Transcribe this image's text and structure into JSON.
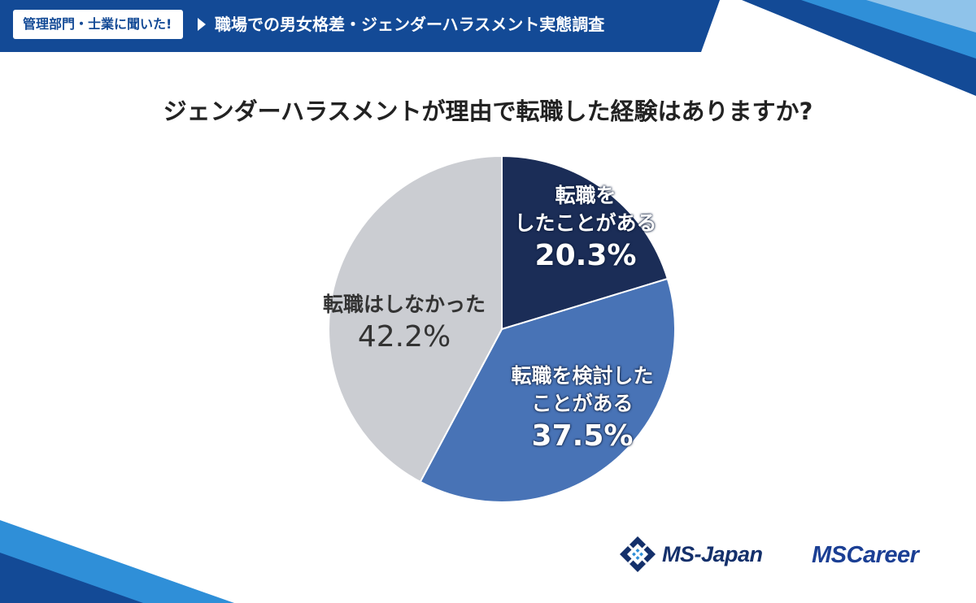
{
  "header": {
    "badge": "管理部門・士業に聞いた!",
    "survey_title": "職場での男女格差・ジェンダーハラスメント実態調査"
  },
  "question": "ジェンダーハラスメントが理由で転職した経験はありますか?",
  "chart_data": {
    "type": "pie",
    "title": "ジェンダーハラスメントが理由で転職した経験はありますか?",
    "start_angle": "12 o'clock, clockwise",
    "slices": [
      {
        "label_line1": "転職を",
        "label_line2": "したことがある",
        "value": 20.3,
        "value_label": "20.3%",
        "color": "#1b2d57"
      },
      {
        "label_line1": "転職を検討した",
        "label_line2": "ことがある",
        "value": 37.5,
        "value_label": "37.5%",
        "color": "#4873b6"
      },
      {
        "label_line1": "転職はしなかった",
        "label_line2": "",
        "value": 42.2,
        "value_label": "42.2%",
        "color": "#cbcdd2"
      }
    ]
  },
  "logos": {
    "ms_japan": "MS-Japan",
    "ms_career": "MSCareer"
  },
  "colors": {
    "header_blue": "#134a96",
    "accent_light_blue": "#2f8fd8"
  }
}
